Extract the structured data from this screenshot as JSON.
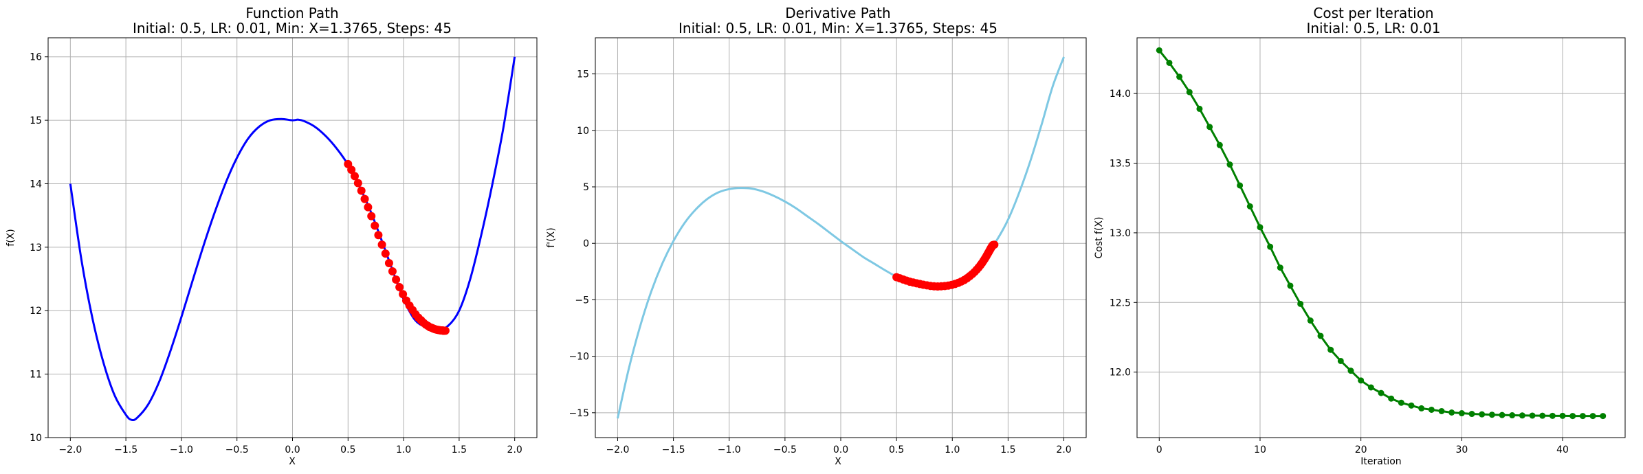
{
  "chart_data": [
    {
      "type": "line",
      "title": "Function Path",
      "subtitle": "Initial: 0.5, LR: 0.01, Min: X=1.3765, Steps: 45",
      "xlabel": "X",
      "ylabel": "f(X)",
      "xlim": [
        -2.2,
        2.2
      ],
      "ylim": [
        10.0,
        16.3
      ],
      "xticks": [
        -2.0,
        -1.5,
        -1.0,
        -0.5,
        0.0,
        0.5,
        1.0,
        1.5,
        2.0
      ],
      "xtick_labels": [
        "−2.0",
        "−1.5",
        "−1.0",
        "−0.5",
        "0.0",
        "0.5",
        "1.0",
        "1.5",
        "2.0"
      ],
      "yticks": [
        10,
        11,
        12,
        13,
        14,
        15,
        16
      ],
      "ytick_labels": [
        "10",
        "11",
        "12",
        "13",
        "14",
        "15",
        "16"
      ],
      "grid": true,
      "series": [
        {
          "kind": "curve",
          "color": "#0000ff",
          "x": [
            -2.0,
            -1.9,
            -1.8,
            -1.7,
            -1.6,
            -1.5,
            -1.45,
            -1.4,
            -1.3,
            -1.2,
            -1.1,
            -1.0,
            -0.9,
            -0.8,
            -0.7,
            -0.6,
            -0.5,
            -0.4,
            -0.3,
            -0.2,
            -0.1,
            0.0,
            0.05,
            0.1,
            0.2,
            0.3,
            0.4,
            0.5,
            0.6,
            0.7,
            0.8,
            0.9,
            1.0,
            1.1,
            1.2,
            1.3,
            1.4,
            1.5,
            1.6,
            1.7,
            1.8,
            1.9,
            2.0
          ],
          "y": [
            14.0,
            12.8,
            11.87,
            11.17,
            10.66,
            10.36,
            10.28,
            10.31,
            10.52,
            10.88,
            11.36,
            11.9,
            12.47,
            13.03,
            13.55,
            14.02,
            14.41,
            14.71,
            14.9,
            15.0,
            15.02,
            15.0,
            15.01,
            14.99,
            14.9,
            14.75,
            14.55,
            14.3,
            13.97,
            13.58,
            13.12,
            12.64,
            12.18,
            11.86,
            11.74,
            11.69,
            11.76,
            12.0,
            12.5,
            13.2,
            14.0,
            14.9,
            16.0
          ]
        },
        {
          "kind": "path-points",
          "color": "#ff0000",
          "x": [
            0.5,
            0.53,
            0.56,
            0.59,
            0.62,
            0.65,
            0.68,
            0.71,
            0.741,
            0.773,
            0.805,
            0.837,
            0.869,
            0.9,
            0.932,
            0.963,
            0.994,
            1.024,
            1.053,
            1.081,
            1.108,
            1.133,
            1.157,
            1.179,
            1.2,
            1.219,
            1.236,
            1.252,
            1.266,
            1.279,
            1.29,
            1.301,
            1.31,
            1.318,
            1.325,
            1.332,
            1.338,
            1.343,
            1.348,
            1.352,
            1.356,
            1.359,
            1.362,
            1.365,
            1.3765
          ],
          "y": [
            14.31,
            14.22,
            14.12,
            14.01,
            13.89,
            13.76,
            13.63,
            13.49,
            13.34,
            13.19,
            13.04,
            12.9,
            12.75,
            12.62,
            12.49,
            12.37,
            12.26,
            12.16,
            12.08,
            12.01,
            11.94,
            11.89,
            11.85,
            11.81,
            11.78,
            11.76,
            11.74,
            11.73,
            11.72,
            11.71,
            11.705,
            11.7,
            11.697,
            11.694,
            11.692,
            11.69,
            11.689,
            11.688,
            11.687,
            11.686,
            11.686,
            11.685,
            11.685,
            11.685,
            11.685
          ]
        }
      ]
    },
    {
      "type": "line",
      "title": "Derivative Path",
      "subtitle": "Initial: 0.5, LR: 0.01, Min: X=1.3765, Steps: 45",
      "xlabel": "X",
      "ylabel": "f'(X)",
      "xlim": [
        -2.2,
        2.2
      ],
      "ylim": [
        -17.2,
        18.2
      ],
      "xticks": [
        -2.0,
        -1.5,
        -1.0,
        -0.5,
        0.0,
        0.5,
        1.0,
        1.5,
        2.0
      ],
      "xtick_labels": [
        "−2.0",
        "−1.5",
        "−1.0",
        "−0.5",
        "0.0",
        "0.5",
        "1.0",
        "1.5",
        "2.0"
      ],
      "yticks": [
        -15,
        -10,
        -5,
        0,
        5,
        10,
        15
      ],
      "ytick_labels": [
        "−15",
        "−10",
        "−5",
        "0",
        "5",
        "10",
        "15"
      ],
      "grid": true,
      "series": [
        {
          "kind": "curve",
          "color": "#7ec8e3",
          "x": [
            -2.0,
            -1.9,
            -1.8,
            -1.7,
            -1.6,
            -1.5,
            -1.4,
            -1.3,
            -1.2,
            -1.1,
            -1.0,
            -0.9,
            -0.8,
            -0.7,
            -0.6,
            -0.5,
            -0.4,
            -0.3,
            -0.2,
            -0.1,
            0.0,
            0.1,
            0.2,
            0.3,
            0.4,
            0.5,
            0.6,
            0.7,
            0.8,
            0.9,
            1.0,
            1.1,
            1.2,
            1.3,
            1.4,
            1.5,
            1.6,
            1.7,
            1.8,
            1.9,
            2.0
          ],
          "y": [
            -15.5,
            -11.1,
            -7.4,
            -4.3,
            -1.8,
            0.2,
            1.8,
            3.0,
            3.9,
            4.5,
            4.8,
            4.9,
            4.85,
            4.6,
            4.2,
            3.7,
            3.1,
            2.4,
            1.7,
            0.95,
            0.2,
            -0.5,
            -1.2,
            -1.8,
            -2.4,
            -2.95,
            -3.35,
            -3.65,
            -3.8,
            -3.75,
            -3.5,
            -3.0,
            -2.2,
            -1.1,
            0.3,
            2.1,
            4.5,
            7.3,
            10.5,
            13.9,
            16.5
          ]
        },
        {
          "kind": "path-points",
          "color": "#ff0000",
          "x": [
            0.5,
            0.53,
            0.56,
            0.59,
            0.62,
            0.65,
            0.68,
            0.71,
            0.741,
            0.773,
            0.805,
            0.837,
            0.869,
            0.9,
            0.932,
            0.963,
            0.994,
            1.024,
            1.053,
            1.081,
            1.108,
            1.133,
            1.157,
            1.179,
            1.2,
            1.219,
            1.236,
            1.252,
            1.266,
            1.279,
            1.29,
            1.301,
            1.31,
            1.318,
            1.325,
            1.332,
            1.338,
            1.343,
            1.348,
            1.352,
            1.356,
            1.359,
            1.362,
            1.365,
            1.3765
          ],
          "y": [
            -3.0,
            -3.1,
            -3.2,
            -3.3,
            -3.4,
            -3.47,
            -3.54,
            -3.6,
            -3.67,
            -3.72,
            -3.77,
            -3.8,
            -3.82,
            -3.8,
            -3.78,
            -3.74,
            -3.68,
            -3.6,
            -3.5,
            -3.38,
            -3.24,
            -3.08,
            -2.9,
            -2.72,
            -2.53,
            -2.33,
            -2.14,
            -1.94,
            -1.75,
            -1.56,
            -1.39,
            -1.22,
            -1.06,
            -0.92,
            -0.8,
            -0.68,
            -0.57,
            -0.48,
            -0.4,
            -0.33,
            -0.27,
            -0.22,
            -0.18,
            -0.15,
            -0.12
          ]
        }
      ]
    },
    {
      "type": "line",
      "title": "Cost per Iteration",
      "subtitle": "Initial: 0.5, LR: 0.01",
      "xlabel": "Iteration",
      "ylabel": "Cost f(X)",
      "xlim": [
        -2.2,
        46.2
      ],
      "ylim": [
        11.53,
        14.4
      ],
      "xticks": [
        0,
        10,
        20,
        30,
        40
      ],
      "xtick_labels": [
        "0",
        "10",
        "20",
        "30",
        "40"
      ],
      "yticks": [
        12.0,
        12.5,
        13.0,
        13.5,
        14.0
      ],
      "ytick_labels": [
        "12.0",
        "12.5",
        "13.0",
        "13.5",
        "14.0"
      ],
      "grid": true,
      "series": [
        {
          "kind": "cost-markers",
          "color": "#008000",
          "x": [
            0,
            1,
            2,
            3,
            4,
            5,
            6,
            7,
            8,
            9,
            10,
            11,
            12,
            13,
            14,
            15,
            16,
            17,
            18,
            19,
            20,
            21,
            22,
            23,
            24,
            25,
            26,
            27,
            28,
            29,
            30,
            31,
            32,
            33,
            34,
            35,
            36,
            37,
            38,
            39,
            40,
            41,
            42,
            43,
            44
          ],
          "y": [
            14.31,
            14.22,
            14.12,
            14.01,
            13.89,
            13.76,
            13.63,
            13.49,
            13.34,
            13.19,
            13.04,
            12.9,
            12.75,
            12.62,
            12.49,
            12.37,
            12.26,
            12.16,
            12.08,
            12.01,
            11.94,
            11.89,
            11.85,
            11.81,
            11.78,
            11.76,
            11.74,
            11.73,
            11.72,
            11.71,
            11.705,
            11.7,
            11.697,
            11.694,
            11.692,
            11.69,
            11.689,
            11.688,
            11.687,
            11.686,
            11.686,
            11.685,
            11.685,
            11.685,
            11.685
          ]
        }
      ]
    }
  ]
}
